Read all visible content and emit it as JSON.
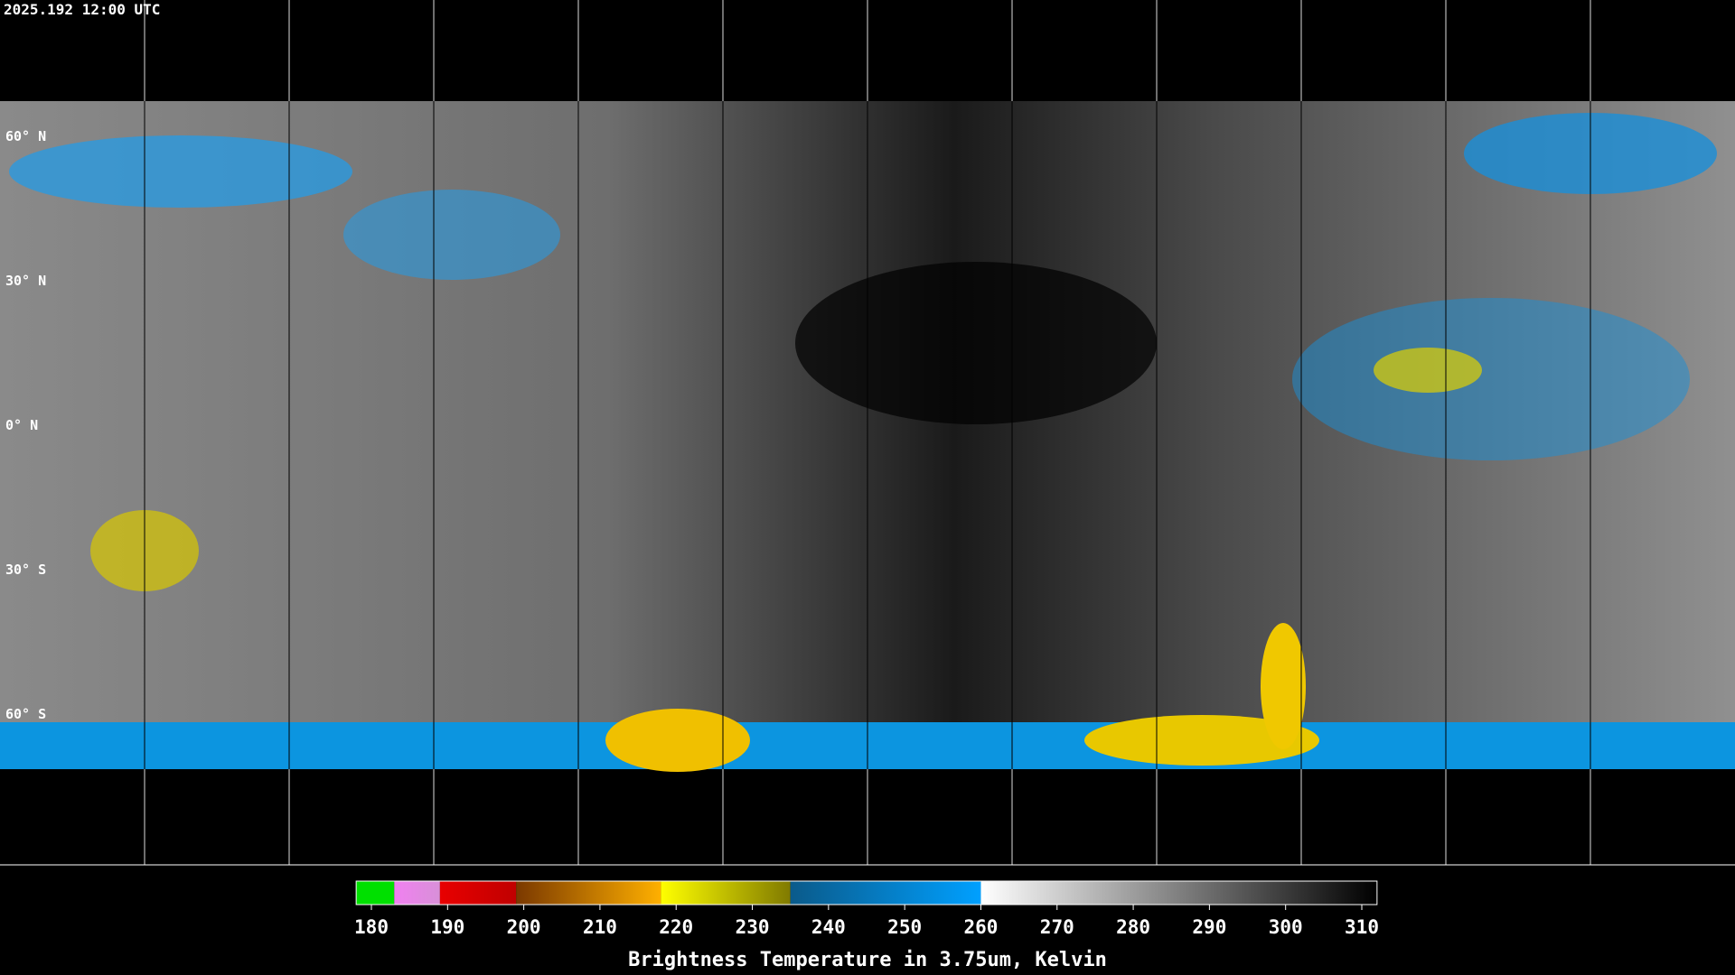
{
  "header": {
    "title": "2025.192 12:00 UTC"
  },
  "map": {
    "lat_labels": [
      "60° N",
      "30° N",
      "0° N",
      "30° S",
      "60° S"
    ]
  },
  "colorbar": {
    "ticks": [
      180,
      190,
      200,
      210,
      220,
      230,
      240,
      250,
      260,
      270,
      280,
      290,
      300,
      310
    ],
    "label": "Brightness Temperature in 3.75um, Kelvin",
    "segments": [
      {
        "from": 178,
        "to": 183,
        "colors": [
          "#00e000",
          "#00e000"
        ]
      },
      {
        "from": 183,
        "to": 189,
        "colors": [
          "#f080f0",
          "#d890d8"
        ]
      },
      {
        "from": 189,
        "to": 199,
        "colors": [
          "#e80000",
          "#c00000"
        ]
      },
      {
        "from": 199,
        "to": 218,
        "colors": [
          "#7a3800",
          "#ffb000"
        ]
      },
      {
        "from": 218,
        "to": 235,
        "colors": [
          "#ffff00",
          "#807a00"
        ]
      },
      {
        "from": 235,
        "to": 260,
        "colors": [
          "#0a5a8a",
          "#00a0ff"
        ]
      },
      {
        "from": 260,
        "to": 312,
        "colors": [
          "#ffffff",
          "#000000"
        ]
      }
    ]
  }
}
